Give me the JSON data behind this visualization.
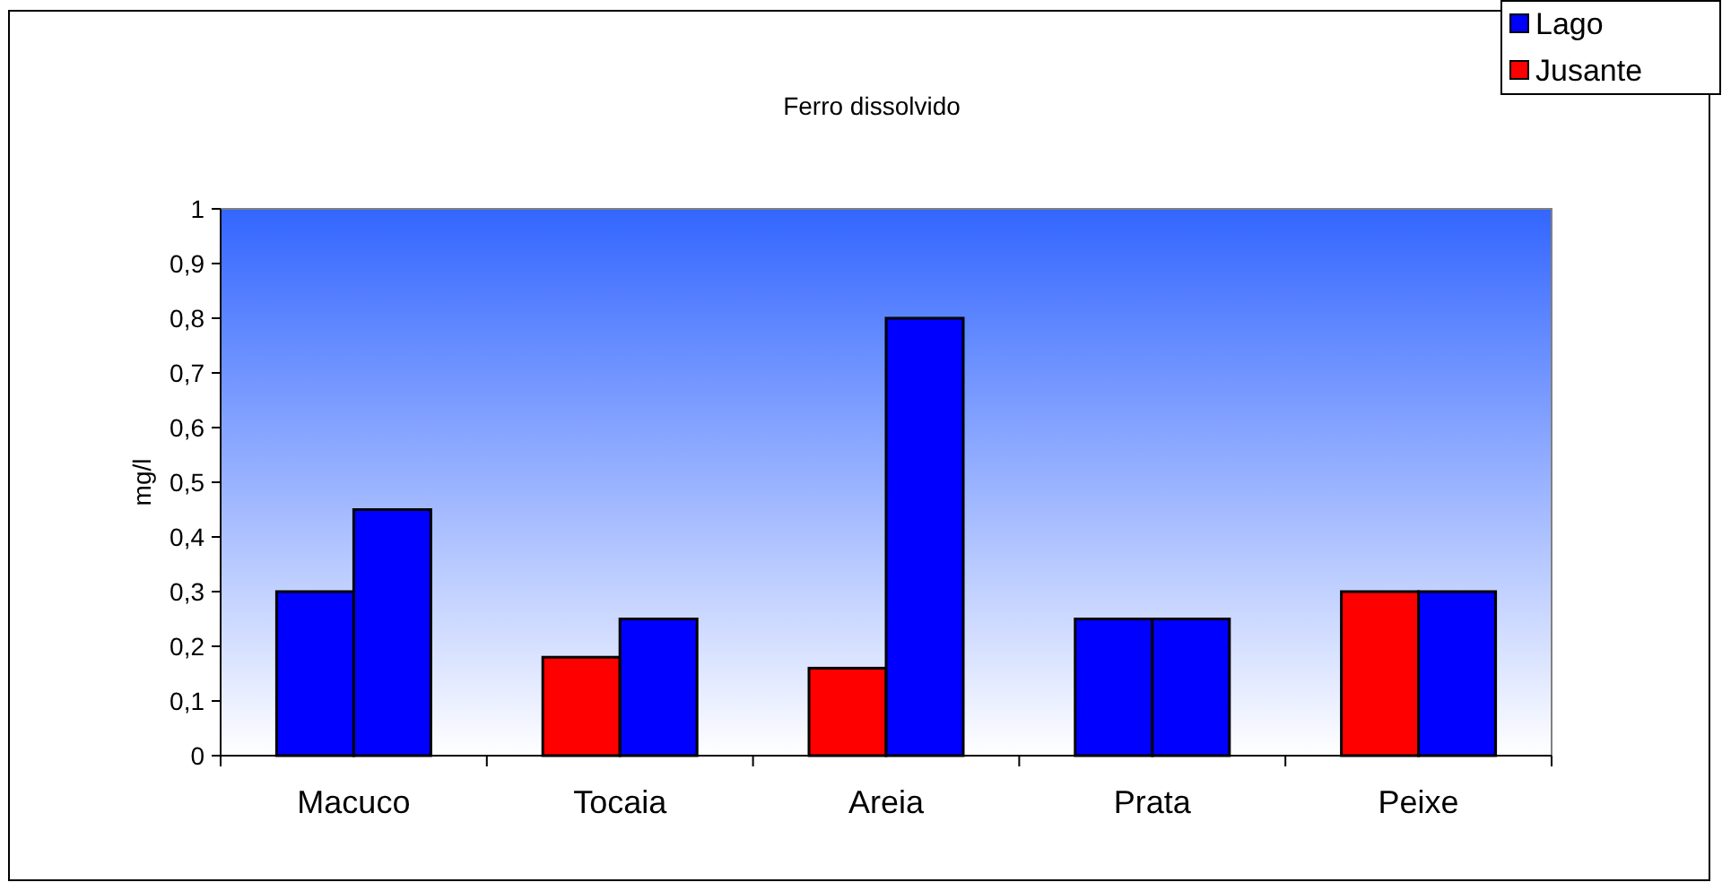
{
  "chart_data": {
    "type": "bar",
    "title": "Ferro dissolvido",
    "ylabel": "mg/l",
    "categories": [
      "Macuco",
      "Tocaia",
      "Areia",
      "Prata",
      "Peixe"
    ],
    "series": [
      {
        "name": "Jusante",
        "color": "#ff0000",
        "colors": [
          "#0000ff",
          "#ff0000",
          "#ff0000",
          "#0000ff",
          "#ff0000"
        ],
        "values": [
          0.3,
          0.18,
          0.16,
          0.25,
          0.3
        ]
      },
      {
        "name": "Lago",
        "color": "#0000ff",
        "values": [
          0.45,
          0.25,
          0.8,
          0.25,
          0.3
        ]
      }
    ],
    "ylim": [
      0,
      1
    ],
    "yticks": [
      {
        "value": 0,
        "label": "0"
      },
      {
        "value": 0.1,
        "label": "0,1"
      },
      {
        "value": 0.2,
        "label": "0,2"
      },
      {
        "value": 0.3,
        "label": "0,3"
      },
      {
        "value": 0.4,
        "label": "0,4"
      },
      {
        "value": 0.5,
        "label": "0,5"
      },
      {
        "value": 0.6,
        "label": "0,6"
      },
      {
        "value": 0.7,
        "label": "0,7"
      },
      {
        "value": 0.8,
        "label": "0,8"
      },
      {
        "value": 0.9,
        "label": "0,9"
      },
      {
        "value": 1,
        "label": "1"
      }
    ],
    "grid": false,
    "legend": "top right"
  }
}
